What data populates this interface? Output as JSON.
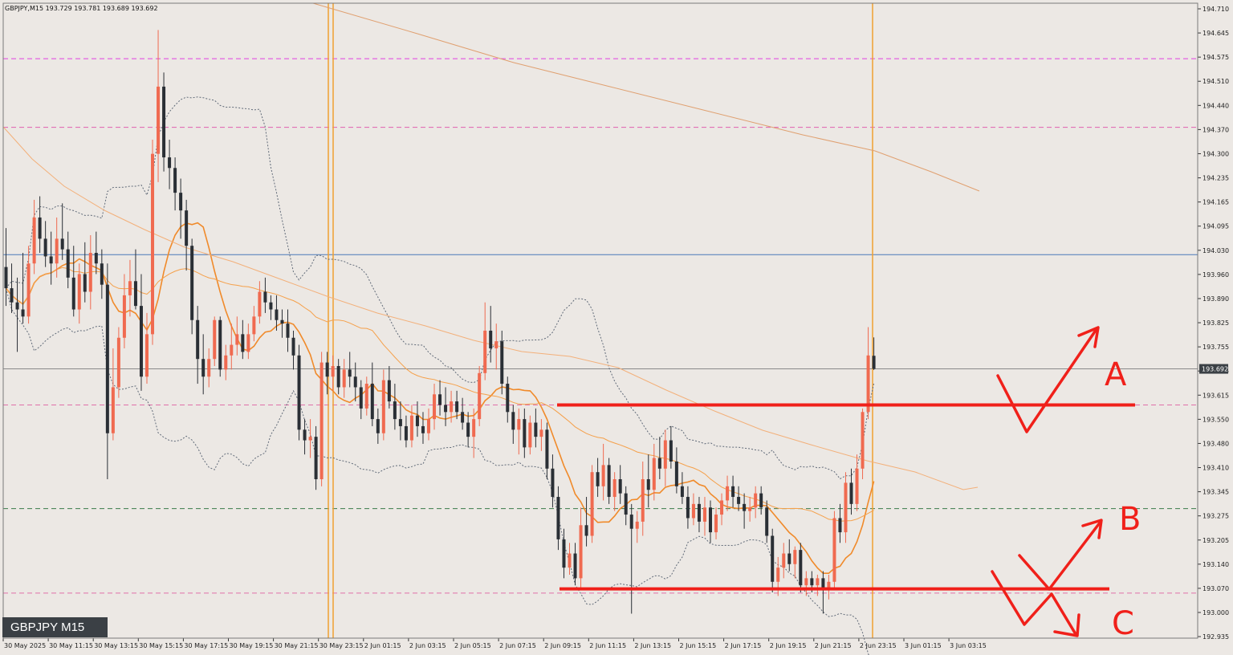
{
  "window": {
    "header": "GBPJPY,M15  193.729 193.781 193.689 193.692",
    "symbol_label": "GBPJPY M15",
    "current_price_label": "193.692"
  },
  "chart_data": {
    "type": "candlestick",
    "symbol": "GBPJPY",
    "timeframe": "M15",
    "ohlc_header": {
      "open": 193.729,
      "high": 193.781,
      "low": 193.689,
      "close": 193.692
    },
    "ylim": [
      192.935,
      194.71
    ],
    "y_ticks": [
      "194.710",
      "194.645",
      "194.575",
      "194.510",
      "194.440",
      "194.370",
      "194.300",
      "194.235",
      "194.165",
      "194.095",
      "194.030",
      "193.960",
      "193.890",
      "193.825",
      "193.755",
      "193.685",
      "193.615",
      "193.550",
      "193.480",
      "193.410",
      "193.345",
      "193.275",
      "193.205",
      "193.140",
      "193.070",
      "193.000",
      "192.935"
    ],
    "x_ticks": [
      "30 May 2025",
      "30 May 11:15",
      "30 May 13:15",
      "30 May 15:15",
      "30 May 17:15",
      "30 May 19:15",
      "30 May 21:15",
      "30 May 23:15",
      "2 Jun 01:15",
      "2 Jun 03:15",
      "2 Jun 05:15",
      "2 Jun 07:15",
      "2 Jun 09:15",
      "2 Jun 11:15",
      "2 Jun 13:15",
      "2 Jun 15:15",
      "2 Jun 17:15",
      "2 Jun 19:15",
      "2 Jun 21:15",
      "2 Jun 23:15",
      "3 Jun 01:15",
      "3 Jun 03:15"
    ],
    "candles": [
      {
        "o": 193.98,
        "h": 194.09,
        "l": 193.87,
        "c": 193.92
      },
      {
        "o": 193.92,
        "h": 193.99,
        "l": 193.85,
        "c": 193.88
      },
      {
        "o": 193.88,
        "h": 193.95,
        "l": 193.74,
        "c": 193.86
      },
      {
        "o": 193.86,
        "h": 194.02,
        "l": 193.82,
        "c": 193.84
      },
      {
        "o": 193.84,
        "h": 194.04,
        "l": 193.82,
        "c": 193.99
      },
      {
        "o": 193.99,
        "h": 194.17,
        "l": 193.96,
        "c": 194.12
      },
      {
        "o": 194.12,
        "h": 194.18,
        "l": 194.02,
        "c": 194.06
      },
      {
        "o": 194.06,
        "h": 194.11,
        "l": 193.98,
        "c": 194.01
      },
      {
        "o": 194.01,
        "h": 194.08,
        "l": 193.93,
        "c": 193.99
      },
      {
        "o": 193.99,
        "h": 194.12,
        "l": 193.95,
        "c": 194.06
      },
      {
        "o": 194.06,
        "h": 194.16,
        "l": 194.0,
        "c": 194.03
      },
      {
        "o": 194.03,
        "h": 194.08,
        "l": 193.92,
        "c": 193.95
      },
      {
        "o": 193.95,
        "h": 194.04,
        "l": 193.84,
        "c": 193.86
      },
      {
        "o": 193.86,
        "h": 193.99,
        "l": 193.82,
        "c": 193.96
      },
      {
        "o": 193.96,
        "h": 194.05,
        "l": 193.88,
        "c": 193.91
      },
      {
        "o": 193.91,
        "h": 194.07,
        "l": 193.86,
        "c": 194.02
      },
      {
        "o": 194.02,
        "h": 194.08,
        "l": 193.96,
        "c": 193.99
      },
      {
        "o": 193.99,
        "h": 194.03,
        "l": 193.89,
        "c": 193.93
      },
      {
        "o": 193.93,
        "h": 193.99,
        "l": 193.38,
        "c": 193.51
      },
      {
        "o": 193.51,
        "h": 193.75,
        "l": 193.49,
        "c": 193.64
      },
      {
        "o": 193.64,
        "h": 193.81,
        "l": 193.61,
        "c": 193.78
      },
      {
        "o": 193.78,
        "h": 193.96,
        "l": 193.75,
        "c": 193.9
      },
      {
        "o": 193.9,
        "h": 194.0,
        "l": 193.84,
        "c": 193.94
      },
      {
        "o": 193.94,
        "h": 194.03,
        "l": 193.86,
        "c": 193.87
      },
      {
        "o": 193.87,
        "h": 193.96,
        "l": 193.63,
        "c": 193.67
      },
      {
        "o": 193.67,
        "h": 193.85,
        "l": 193.65,
        "c": 193.79
      },
      {
        "o": 193.79,
        "h": 194.34,
        "l": 193.76,
        "c": 194.3
      },
      {
        "o": 194.3,
        "h": 194.65,
        "l": 194.22,
        "c": 194.49
      },
      {
        "o": 194.49,
        "h": 194.53,
        "l": 194.25,
        "c": 194.29
      },
      {
        "o": 194.29,
        "h": 194.34,
        "l": 194.2,
        "c": 194.26
      },
      {
        "o": 194.26,
        "h": 194.29,
        "l": 194.14,
        "c": 194.19
      },
      {
        "o": 194.19,
        "h": 194.23,
        "l": 194.06,
        "c": 194.14
      },
      {
        "o": 194.14,
        "h": 194.17,
        "l": 193.97,
        "c": 194.04
      },
      {
        "o": 194.04,
        "h": 194.06,
        "l": 193.79,
        "c": 193.83
      },
      {
        "o": 193.83,
        "h": 193.87,
        "l": 193.65,
        "c": 193.72
      },
      {
        "o": 193.72,
        "h": 193.79,
        "l": 193.62,
        "c": 193.67
      },
      {
        "o": 193.67,
        "h": 193.75,
        "l": 193.64,
        "c": 193.72
      },
      {
        "o": 193.72,
        "h": 193.84,
        "l": 193.7,
        "c": 193.83
      },
      {
        "o": 193.83,
        "h": 193.84,
        "l": 193.67,
        "c": 193.69
      },
      {
        "o": 193.69,
        "h": 193.76,
        "l": 193.66,
        "c": 193.73
      },
      {
        "o": 193.73,
        "h": 193.82,
        "l": 193.69,
        "c": 193.76
      },
      {
        "o": 193.76,
        "h": 193.84,
        "l": 193.73,
        "c": 193.79
      },
      {
        "o": 193.79,
        "h": 193.83,
        "l": 193.72,
        "c": 193.74
      },
      {
        "o": 193.74,
        "h": 193.82,
        "l": 193.72,
        "c": 193.79
      },
      {
        "o": 193.79,
        "h": 193.87,
        "l": 193.77,
        "c": 193.84
      },
      {
        "o": 193.84,
        "h": 193.94,
        "l": 193.82,
        "c": 193.91
      },
      {
        "o": 193.91,
        "h": 193.95,
        "l": 193.85,
        "c": 193.88
      },
      {
        "o": 193.88,
        "h": 193.9,
        "l": 193.83,
        "c": 193.86
      },
      {
        "o": 193.86,
        "h": 193.9,
        "l": 193.8,
        "c": 193.83
      },
      {
        "o": 193.83,
        "h": 193.86,
        "l": 193.78,
        "c": 193.82
      },
      {
        "o": 193.82,
        "h": 193.86,
        "l": 193.74,
        "c": 193.78
      },
      {
        "o": 193.78,
        "h": 193.8,
        "l": 193.69,
        "c": 193.73
      },
      {
        "o": 193.73,
        "h": 193.76,
        "l": 193.49,
        "c": 193.52
      },
      {
        "o": 193.52,
        "h": 193.55,
        "l": 193.45,
        "c": 193.49
      },
      {
        "o": 193.49,
        "h": 193.55,
        "l": 193.44,
        "c": 193.5
      },
      {
        "o": 193.5,
        "h": 193.53,
        "l": 193.35,
        "c": 193.38
      },
      {
        "o": 193.38,
        "h": 193.74,
        "l": 193.36,
        "c": 193.71
      },
      {
        "o": 193.71,
        "h": 193.74,
        "l": 193.62,
        "c": 193.67
      },
      {
        "o": 193.67,
        "h": 193.73,
        "l": 193.63,
        "c": 193.7
      },
      {
        "o": 193.7,
        "h": 193.72,
        "l": 193.62,
        "c": 193.64
      },
      {
        "o": 193.64,
        "h": 193.72,
        "l": 193.61,
        "c": 193.69
      },
      {
        "o": 193.69,
        "h": 193.74,
        "l": 193.64,
        "c": 193.67
      },
      {
        "o": 193.67,
        "h": 193.71,
        "l": 193.6,
        "c": 193.64
      },
      {
        "o": 193.64,
        "h": 193.66,
        "l": 193.55,
        "c": 193.58
      },
      {
        "o": 193.58,
        "h": 193.67,
        "l": 193.56,
        "c": 193.65
      },
      {
        "o": 193.65,
        "h": 193.71,
        "l": 193.53,
        "c": 193.55
      },
      {
        "o": 193.55,
        "h": 193.58,
        "l": 193.48,
        "c": 193.51
      },
      {
        "o": 193.51,
        "h": 193.69,
        "l": 193.49,
        "c": 193.66
      },
      {
        "o": 193.66,
        "h": 193.7,
        "l": 193.58,
        "c": 193.6
      },
      {
        "o": 193.6,
        "h": 193.65,
        "l": 193.52,
        "c": 193.55
      },
      {
        "o": 193.55,
        "h": 193.6,
        "l": 193.49,
        "c": 193.53
      },
      {
        "o": 193.53,
        "h": 193.56,
        "l": 193.47,
        "c": 193.49
      },
      {
        "o": 193.49,
        "h": 193.59,
        "l": 193.47,
        "c": 193.56
      },
      {
        "o": 193.56,
        "h": 193.6,
        "l": 193.5,
        "c": 193.53
      },
      {
        "o": 193.53,
        "h": 193.57,
        "l": 193.48,
        "c": 193.51
      },
      {
        "o": 193.51,
        "h": 193.58,
        "l": 193.49,
        "c": 193.55
      },
      {
        "o": 193.55,
        "h": 193.65,
        "l": 193.52,
        "c": 193.62
      },
      {
        "o": 193.62,
        "h": 193.66,
        "l": 193.56,
        "c": 193.59
      },
      {
        "o": 193.59,
        "h": 193.64,
        "l": 193.53,
        "c": 193.57
      },
      {
        "o": 193.57,
        "h": 193.63,
        "l": 193.54,
        "c": 193.6
      },
      {
        "o": 193.6,
        "h": 193.63,
        "l": 193.55,
        "c": 193.57
      },
      {
        "o": 193.57,
        "h": 193.61,
        "l": 193.52,
        "c": 193.54
      },
      {
        "o": 193.54,
        "h": 193.57,
        "l": 193.47,
        "c": 193.5
      },
      {
        "o": 193.5,
        "h": 193.58,
        "l": 193.44,
        "c": 193.55
      },
      {
        "o": 193.55,
        "h": 193.7,
        "l": 193.53,
        "c": 193.68
      },
      {
        "o": 193.68,
        "h": 193.88,
        "l": 193.66,
        "c": 193.8
      },
      {
        "o": 193.8,
        "h": 193.87,
        "l": 193.71,
        "c": 193.75
      },
      {
        "o": 193.75,
        "h": 193.82,
        "l": 193.69,
        "c": 193.77
      },
      {
        "o": 193.77,
        "h": 193.8,
        "l": 193.62,
        "c": 193.65
      },
      {
        "o": 193.65,
        "h": 193.67,
        "l": 193.54,
        "c": 193.57
      },
      {
        "o": 193.57,
        "h": 193.59,
        "l": 193.48,
        "c": 193.52
      },
      {
        "o": 193.52,
        "h": 193.58,
        "l": 193.45,
        "c": 193.55
      },
      {
        "o": 193.55,
        "h": 193.58,
        "l": 193.44,
        "c": 193.47
      },
      {
        "o": 193.47,
        "h": 193.56,
        "l": 193.45,
        "c": 193.54
      },
      {
        "o": 193.54,
        "h": 193.58,
        "l": 193.47,
        "c": 193.5
      },
      {
        "o": 193.5,
        "h": 193.55,
        "l": 193.46,
        "c": 193.52
      },
      {
        "o": 193.52,
        "h": 193.54,
        "l": 193.38,
        "c": 193.41
      },
      {
        "o": 193.41,
        "h": 193.45,
        "l": 193.3,
        "c": 193.33
      },
      {
        "o": 193.33,
        "h": 193.36,
        "l": 193.18,
        "c": 193.21
      },
      {
        "o": 193.21,
        "h": 193.24,
        "l": 193.1,
        "c": 193.13
      },
      {
        "o": 193.13,
        "h": 193.2,
        "l": 193.11,
        "c": 193.17
      },
      {
        "o": 193.17,
        "h": 193.2,
        "l": 193.08,
        "c": 193.1
      },
      {
        "o": 193.1,
        "h": 193.3,
        "l": 193.07,
        "c": 193.25
      },
      {
        "o": 193.25,
        "h": 193.33,
        "l": 193.19,
        "c": 193.22
      },
      {
        "o": 193.22,
        "h": 193.42,
        "l": 193.2,
        "c": 193.4
      },
      {
        "o": 193.4,
        "h": 193.44,
        "l": 193.33,
        "c": 193.36
      },
      {
        "o": 193.36,
        "h": 193.48,
        "l": 193.32,
        "c": 193.42
      },
      {
        "o": 193.42,
        "h": 193.44,
        "l": 193.31,
        "c": 193.33
      },
      {
        "o": 193.33,
        "h": 193.4,
        "l": 193.29,
        "c": 193.38
      },
      {
        "o": 193.38,
        "h": 193.42,
        "l": 193.31,
        "c": 193.34
      },
      {
        "o": 193.34,
        "h": 193.36,
        "l": 193.25,
        "c": 193.28
      },
      {
        "o": 193.28,
        "h": 193.31,
        "l": 193.0,
        "c": 193.24
      },
      {
        "o": 193.24,
        "h": 193.29,
        "l": 193.2,
        "c": 193.26
      },
      {
        "o": 193.26,
        "h": 193.43,
        "l": 193.22,
        "c": 193.38
      },
      {
        "o": 193.38,
        "h": 193.45,
        "l": 193.3,
        "c": 193.35
      },
      {
        "o": 193.35,
        "h": 193.48,
        "l": 193.32,
        "c": 193.44
      },
      {
        "o": 193.44,
        "h": 193.5,
        "l": 193.38,
        "c": 193.41
      },
      {
        "o": 193.41,
        "h": 193.52,
        "l": 193.36,
        "c": 193.49
      },
      {
        "o": 193.49,
        "h": 193.53,
        "l": 193.41,
        "c": 193.43
      },
      {
        "o": 193.43,
        "h": 193.47,
        "l": 193.34,
        "c": 193.36
      },
      {
        "o": 193.36,
        "h": 193.4,
        "l": 193.31,
        "c": 193.33
      },
      {
        "o": 193.33,
        "h": 193.36,
        "l": 193.24,
        "c": 193.27
      },
      {
        "o": 193.27,
        "h": 193.34,
        "l": 193.25,
        "c": 193.31
      },
      {
        "o": 193.31,
        "h": 193.33,
        "l": 193.23,
        "c": 193.26
      },
      {
        "o": 193.26,
        "h": 193.33,
        "l": 193.22,
        "c": 193.3
      },
      {
        "o": 193.3,
        "h": 193.32,
        "l": 193.2,
        "c": 193.23
      },
      {
        "o": 193.23,
        "h": 193.3,
        "l": 193.21,
        "c": 193.28
      },
      {
        "o": 193.28,
        "h": 193.34,
        "l": 193.25,
        "c": 193.32
      },
      {
        "o": 193.32,
        "h": 193.39,
        "l": 193.29,
        "c": 193.36
      },
      {
        "o": 193.36,
        "h": 193.39,
        "l": 193.3,
        "c": 193.33
      },
      {
        "o": 193.33,
        "h": 193.36,
        "l": 193.29,
        "c": 193.31
      },
      {
        "o": 193.31,
        "h": 193.34,
        "l": 193.24,
        "c": 193.29
      },
      {
        "o": 193.29,
        "h": 193.33,
        "l": 193.26,
        "c": 193.3
      },
      {
        "o": 193.3,
        "h": 193.36,
        "l": 193.27,
        "c": 193.34
      },
      {
        "o": 193.34,
        "h": 193.36,
        "l": 193.28,
        "c": 193.3
      },
      {
        "o": 193.3,
        "h": 193.32,
        "l": 193.2,
        "c": 193.22
      },
      {
        "o": 193.22,
        "h": 193.24,
        "l": 193.06,
        "c": 193.09
      },
      {
        "o": 193.09,
        "h": 193.16,
        "l": 193.05,
        "c": 193.13
      },
      {
        "o": 193.13,
        "h": 193.2,
        "l": 193.1,
        "c": 193.17
      },
      {
        "o": 193.17,
        "h": 193.21,
        "l": 193.12,
        "c": 193.14
      },
      {
        "o": 193.14,
        "h": 193.19,
        "l": 193.1,
        "c": 193.18
      },
      {
        "o": 193.18,
        "h": 193.2,
        "l": 193.06,
        "c": 193.08
      },
      {
        "o": 193.08,
        "h": 193.12,
        "l": 193.05,
        "c": 193.1
      },
      {
        "o": 193.1,
        "h": 193.12,
        "l": 193.06,
        "c": 193.08
      },
      {
        "o": 193.08,
        "h": 193.11,
        "l": 193.05,
        "c": 193.1
      },
      {
        "o": 193.1,
        "h": 193.12,
        "l": 193.0,
        "c": 193.07
      },
      {
        "o": 193.07,
        "h": 193.11,
        "l": 193.04,
        "c": 193.09
      },
      {
        "o": 193.09,
        "h": 193.29,
        "l": 193.07,
        "c": 193.27
      },
      {
        "o": 193.27,
        "h": 193.31,
        "l": 193.2,
        "c": 193.23
      },
      {
        "o": 193.23,
        "h": 193.4,
        "l": 193.2,
        "c": 193.37
      },
      {
        "o": 193.37,
        "h": 193.41,
        "l": 193.28,
        "c": 193.31
      },
      {
        "o": 193.31,
        "h": 193.45,
        "l": 193.29,
        "c": 193.41
      },
      {
        "o": 193.41,
        "h": 193.58,
        "l": 193.38,
        "c": 193.57
      },
      {
        "o": 193.57,
        "h": 193.81,
        "l": 193.55,
        "c": 193.73
      },
      {
        "o": 193.729,
        "h": 193.781,
        "l": 193.689,
        "c": 193.692
      }
    ],
    "moving_averages": [
      {
        "color": "#f08a2a",
        "role": "fast"
      },
      {
        "color": "#f5a04a",
        "role": "medium"
      },
      {
        "color": "#e0a070",
        "role": "slow"
      }
    ],
    "horizontal_lines": [
      {
        "price": 194.569,
        "color": "#e040e0",
        "style": "dashed"
      },
      {
        "price": 194.375,
        "color": "#e060b0",
        "style": "dashed"
      },
      {
        "price": 194.015,
        "color": "#4a78b8",
        "style": "solid"
      },
      {
        "price": 193.59,
        "color": "#e070a8",
        "style": "dashed"
      },
      {
        "price": 193.297,
        "color": "#3a7a4a",
        "style": "dashed"
      },
      {
        "price": 193.058,
        "color": "#e070a8",
        "style": "dashed"
      }
    ],
    "drawn_levels": [
      {
        "price": 193.59,
        "color": "#f0201a"
      },
      {
        "price": 193.07,
        "color": "#f0201a"
      }
    ],
    "scenario_labels": [
      "A",
      "B",
      "C"
    ],
    "colors": {
      "bull": "#f06a50",
      "bear": "#2a2f35",
      "background": "#ece8e4",
      "annotation": "#f0201a"
    }
  }
}
